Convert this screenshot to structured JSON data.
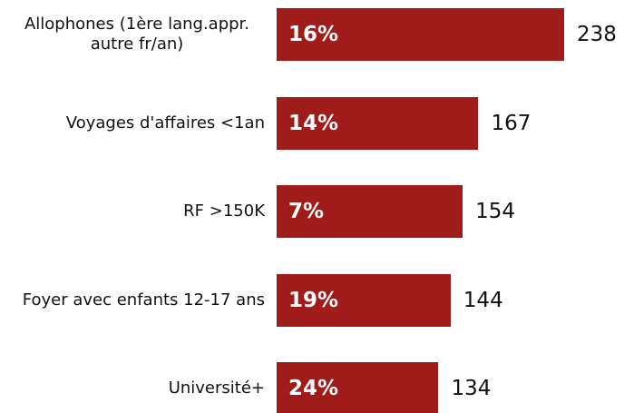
{
  "chart_data": {
    "type": "bar",
    "orientation": "horizontal",
    "categories": [
      "Allophones (1ère lang.appr. autre fr/an)",
      "Voyages d'affaires <1an",
      "RF >150K",
      "Foyer avec enfants 12-17 ans",
      "Université+"
    ],
    "values": [
      238,
      167,
      154,
      144,
      134
    ],
    "percent_labels": [
      "16%",
      "14%",
      "7%",
      "19%",
      "24%"
    ],
    "color": "#a01c1a"
  }
}
